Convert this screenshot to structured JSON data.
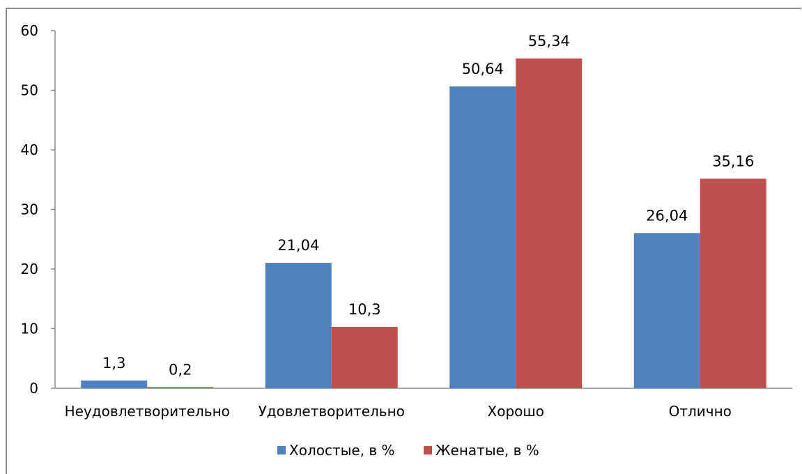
{
  "chart_data": {
    "type": "bar",
    "title": "",
    "xlabel": "",
    "ylabel": "",
    "categories": [
      "Неудовлетворительно",
      "Удовлетворительно",
      "Хорошо",
      "Отлично"
    ],
    "series": [
      {
        "name": "Холостые, в %",
        "color": "#4f81bd",
        "values": [
          1.3,
          21.04,
          50.64,
          26.04
        ],
        "labels": [
          "1,3",
          "21,04",
          "50,64",
          "26,04"
        ]
      },
      {
        "name": "Женатые, в %",
        "color": "#c0504d",
        "values": [
          0.2,
          10.3,
          55.34,
          35.16
        ],
        "labels": [
          "0,2",
          "10,3",
          "55,34",
          "35,16"
        ]
      }
    ],
    "yticks": [
      "0",
      "10",
      "20",
      "30",
      "40",
      "50",
      "60"
    ],
    "ylim": [
      0,
      60
    ],
    "grid": false,
    "legend_position": "bottom"
  }
}
